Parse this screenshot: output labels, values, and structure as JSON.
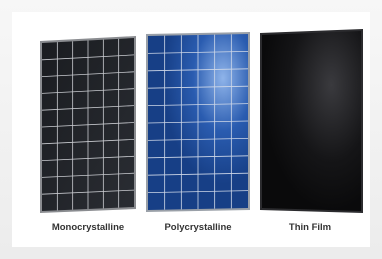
{
  "panels": [
    {
      "label": "Monocrystalline"
    },
    {
      "label": "Polycrystalline"
    },
    {
      "label": "Thin Film"
    }
  ]
}
